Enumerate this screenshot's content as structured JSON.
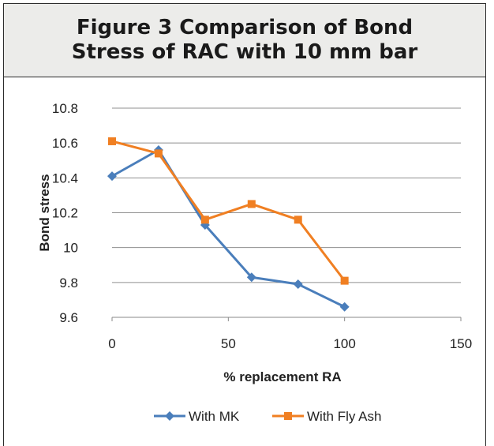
{
  "figure": {
    "title": "Figure 3 Comparison of Bond Stress of RAC with 10 mm bar"
  },
  "chart_data": {
    "type": "line",
    "title": "",
    "xlabel": "% replacement RA",
    "ylabel": "Bond stress",
    "xlim": [
      0,
      150
    ],
    "ylim": [
      9.6,
      10.8
    ],
    "x_ticks": [
      "0",
      "50",
      "100",
      "150"
    ],
    "y_ticks": [
      "9.6",
      "9.8",
      "10",
      "10.2",
      "10.4",
      "10.6",
      "10.8"
    ],
    "grid": "horizontal",
    "legend_position": "bottom",
    "series": [
      {
        "name": "With MK",
        "color": "#4a7ebb",
        "marker": "diamond",
        "x": [
          0,
          20,
          40,
          60,
          80,
          100
        ],
        "y": [
          10.41,
          10.56,
          10.13,
          9.83,
          9.79,
          9.66
        ]
      },
      {
        "name": "With Fly Ash",
        "color": "#f07f22",
        "marker": "square",
        "x": [
          0,
          20,
          40,
          60,
          80,
          100
        ],
        "y": [
          10.61,
          10.54,
          10.16,
          10.25,
          10.16,
          9.81
        ]
      }
    ]
  }
}
